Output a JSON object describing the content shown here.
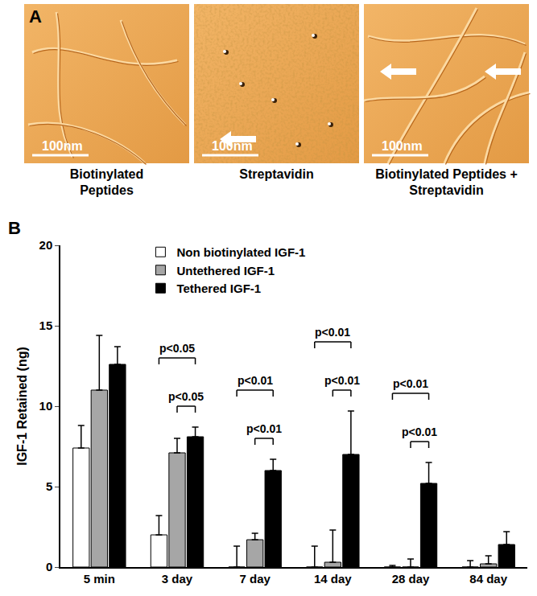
{
  "panel_a": {
    "label": "A",
    "images": [
      {
        "caption": [
          "Biotinylated",
          "Peptides"
        ],
        "scale_bar": "100nm"
      },
      {
        "caption": [
          "Streptavidin"
        ],
        "scale_bar": "100nm"
      },
      {
        "caption": [
          "Biotinylated Peptides +",
          "Streptavidin"
        ],
        "scale_bar": "100nm"
      }
    ]
  },
  "chart_data": {
    "type": "bar",
    "panel_label": "B",
    "y_label": "IGF-1 Retained (ng)",
    "categories": [
      "5 min",
      "3 day",
      "7 day",
      "14 day",
      "28 day",
      "84 day"
    ],
    "series": [
      {
        "name": "Non biotinylated IGF-1",
        "color": "#ffffff",
        "values": [
          7.4,
          2.0,
          0,
          0,
          0,
          0
        ],
        "errors": [
          1.4,
          1.2,
          1.3,
          1.3,
          0.1,
          0.4
        ]
      },
      {
        "name": "Untethered IGF-1",
        "color": "#a6a6a6",
        "values": [
          11.0,
          7.1,
          1.7,
          0.3,
          0,
          0.2
        ],
        "errors": [
          3.4,
          0.9,
          0.4,
          2.0,
          0.5,
          0.5
        ]
      },
      {
        "name": "Tethered IGF-1",
        "color": "#000000",
        "values": [
          12.6,
          8.1,
          6.0,
          7.0,
          5.2,
          1.4
        ],
        "errors": [
          1.1,
          0.6,
          0.7,
          2.7,
          1.3,
          0.8
        ]
      }
    ],
    "comparisons": [
      {
        "category": "3 day",
        "from": "Non biotinylated IGF-1",
        "to": "Tethered IGF-1",
        "text": "p<0.05"
      },
      {
        "category": "3 day",
        "from": "Untethered IGF-1",
        "to": "Tethered IGF-1",
        "text": "p<0.05"
      },
      {
        "category": "7 day",
        "from": "Non biotinylated IGF-1",
        "to": "Tethered IGF-1",
        "text": "p<0.01"
      },
      {
        "category": "7 day",
        "from": "Untethered IGF-1",
        "to": "Tethered IGF-1",
        "text": "p<0.01"
      },
      {
        "category": "14 day",
        "from": "Non biotinylated IGF-1",
        "to": "Tethered IGF-1",
        "text": "p<0.01"
      },
      {
        "category": "14 day",
        "from": "Untethered IGF-1",
        "to": "Tethered IGF-1",
        "text": "p<0.01"
      },
      {
        "category": "28 day",
        "from": "Non biotinylated IGF-1",
        "to": "Tethered IGF-1",
        "text": "p<0.01"
      },
      {
        "category": "28 day",
        "from": "Untethered IGF-1",
        "to": "Tethered IGF-1",
        "text": "p<0.01"
      }
    ],
    "ylim": [
      0,
      20
    ],
    "yticks": [
      0,
      5,
      10,
      15,
      20
    ],
    "grid": false,
    "legend": "top"
  }
}
